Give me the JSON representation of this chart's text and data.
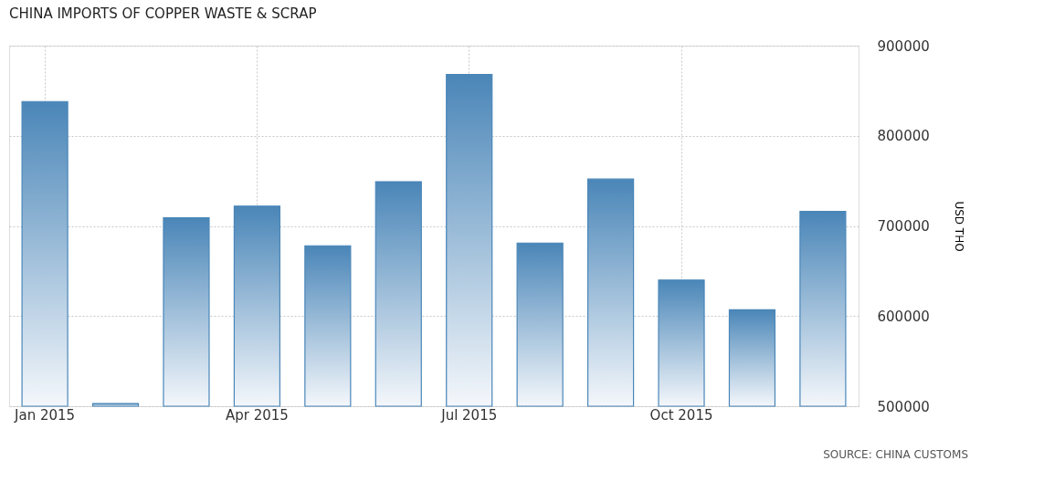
{
  "chart_data": {
    "type": "bar",
    "title": "CHINA IMPORTS OF COPPER WASTE & SCRAP",
    "ylabel": "USD THO",
    "categories": [
      "Jan 2015",
      null,
      null,
      "Apr 2015",
      null,
      null,
      "Jul 2015",
      null,
      null,
      "Oct 2015",
      null,
      null
    ],
    "series": [
      {
        "color": "#4a86b8",
        "values": [
          838000,
          503000,
          709000,
          722000,
          678000,
          749000,
          868000,
          681000,
          752000,
          640000,
          607000,
          716000
        ]
      }
    ],
    "ylim": [
      500000,
      900000
    ],
    "yticks": [
      500000,
      600000,
      700000,
      800000,
      900000
    ],
    "grid": true,
    "annotations": [
      "SOURCE: CHINA CUSTOMS"
    ]
  }
}
